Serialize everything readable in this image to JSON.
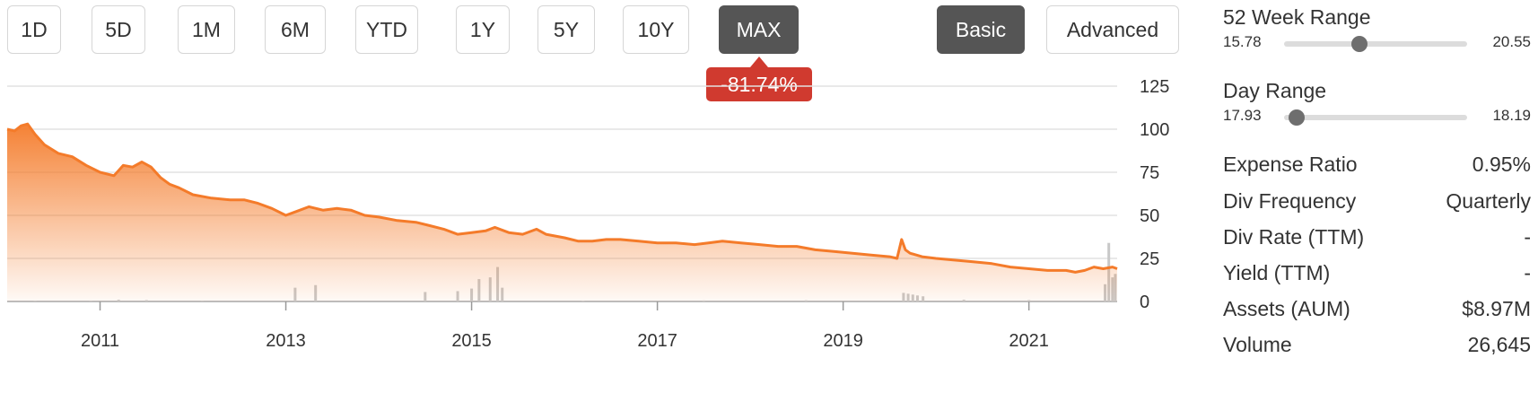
{
  "toolbar": {
    "periods": [
      "1D",
      "5D",
      "1M",
      "6M",
      "YTD",
      "1Y",
      "5Y",
      "10Y",
      "MAX"
    ],
    "active_period": "MAX",
    "modes": [
      "Basic",
      "Advanced"
    ],
    "active_mode": "Basic"
  },
  "change_badge": {
    "text": "-81.74%",
    "color": "#d03a2f"
  },
  "chart_data": {
    "type": "area",
    "y_ticks": [
      0,
      25,
      50,
      75,
      100,
      125
    ],
    "ylim": [
      0,
      125
    ],
    "x_ticks": [
      "2011",
      "2013",
      "2015",
      "2017",
      "2019",
      "2021"
    ],
    "xlim": [
      2010.0,
      2021.95
    ],
    "grid": true,
    "line_color": "#f47b2a",
    "volume_color": "#c8c8c8",
    "series": [
      {
        "values": [
          [
            2010.0,
            100
          ],
          [
            2010.08,
            99
          ],
          [
            2010.15,
            102
          ],
          [
            2010.22,
            103
          ],
          [
            2010.3,
            97
          ],
          [
            2010.4,
            91
          ],
          [
            2010.55,
            86
          ],
          [
            2010.7,
            84
          ],
          [
            2010.85,
            79
          ],
          [
            2011.0,
            75
          ],
          [
            2011.15,
            73
          ],
          [
            2011.25,
            79
          ],
          [
            2011.35,
            78
          ],
          [
            2011.45,
            81
          ],
          [
            2011.55,
            78
          ],
          [
            2011.65,
            72
          ],
          [
            2011.75,
            68
          ],
          [
            2011.85,
            66
          ],
          [
            2012.0,
            62
          ],
          [
            2012.2,
            60
          ],
          [
            2012.4,
            59
          ],
          [
            2012.55,
            59
          ],
          [
            2012.7,
            57
          ],
          [
            2012.85,
            54
          ],
          [
            2013.0,
            50
          ],
          [
            2013.1,
            52
          ],
          [
            2013.25,
            55
          ],
          [
            2013.4,
            53
          ],
          [
            2013.55,
            54
          ],
          [
            2013.7,
            53
          ],
          [
            2013.85,
            50
          ],
          [
            2014.0,
            49
          ],
          [
            2014.2,
            47
          ],
          [
            2014.4,
            46
          ],
          [
            2014.55,
            44
          ],
          [
            2014.7,
            42
          ],
          [
            2014.85,
            39
          ],
          [
            2015.0,
            40
          ],
          [
            2015.15,
            41
          ],
          [
            2015.25,
            43
          ],
          [
            2015.4,
            40
          ],
          [
            2015.55,
            39
          ],
          [
            2015.7,
            42
          ],
          [
            2015.8,
            39
          ],
          [
            2016.0,
            37
          ],
          [
            2016.15,
            35
          ],
          [
            2016.3,
            35
          ],
          [
            2016.45,
            36
          ],
          [
            2016.6,
            36
          ],
          [
            2016.8,
            35
          ],
          [
            2017.0,
            34
          ],
          [
            2017.2,
            34
          ],
          [
            2017.4,
            33
          ],
          [
            2017.55,
            34
          ],
          [
            2017.7,
            35
          ],
          [
            2017.9,
            34
          ],
          [
            2018.1,
            33
          ],
          [
            2018.3,
            32
          ],
          [
            2018.5,
            32
          ],
          [
            2018.7,
            30
          ],
          [
            2018.9,
            29
          ],
          [
            2019.1,
            28
          ],
          [
            2019.3,
            27
          ],
          [
            2019.5,
            26
          ],
          [
            2019.58,
            25
          ],
          [
            2019.63,
            36
          ],
          [
            2019.67,
            30
          ],
          [
            2019.72,
            28
          ],
          [
            2019.85,
            26
          ],
          [
            2020.0,
            25
          ],
          [
            2020.2,
            24
          ],
          [
            2020.4,
            23
          ],
          [
            2020.6,
            22
          ],
          [
            2020.8,
            20
          ],
          [
            2021.0,
            19
          ],
          [
            2021.2,
            18
          ],
          [
            2021.4,
            18
          ],
          [
            2021.5,
            17
          ],
          [
            2021.6,
            18
          ],
          [
            2021.7,
            20
          ],
          [
            2021.8,
            19
          ],
          [
            2021.9,
            20
          ],
          [
            2021.95,
            19
          ]
        ]
      }
    ],
    "volume": [
      [
        2010.3,
        0.4
      ],
      [
        2010.9,
        0.3
      ],
      [
        2011.2,
        1.0
      ],
      [
        2011.5,
        0.8
      ],
      [
        2012.1,
        0.3
      ],
      [
        2013.1,
        8.0
      ],
      [
        2013.32,
        9.5
      ],
      [
        2014.5,
        5.5
      ],
      [
        2014.85,
        6.0
      ],
      [
        2015.0,
        7.5
      ],
      [
        2015.08,
        13.0
      ],
      [
        2015.2,
        14.0
      ],
      [
        2015.28,
        20.0
      ],
      [
        2015.33,
        8.0
      ],
      [
        2016.2,
        0.5
      ],
      [
        2017.5,
        0.6
      ],
      [
        2018.6,
        0.7
      ],
      [
        2019.65,
        5.0
      ],
      [
        2019.7,
        4.5
      ],
      [
        2019.75,
        4.0
      ],
      [
        2019.8,
        3.5
      ],
      [
        2019.86,
        3.0
      ],
      [
        2020.3,
        1.0
      ],
      [
        2021.0,
        0.8
      ],
      [
        2021.82,
        10.0
      ],
      [
        2021.86,
        34.0
      ],
      [
        2021.9,
        14.0
      ],
      [
        2021.93,
        16.0
      ]
    ]
  },
  "stats": {
    "week52": {
      "label": "52 Week Range",
      "low": "15.78",
      "high": "20.55",
      "position": 0.41
    },
    "day": {
      "label": "Day Range",
      "low": "17.93",
      "high": "18.19",
      "position": 0.07
    },
    "rows": [
      {
        "key": "Expense Ratio",
        "value": "0.95%"
      },
      {
        "key": "Div Frequency",
        "value": "Quarterly"
      },
      {
        "key": "Div Rate (TTM)",
        "value": "-"
      },
      {
        "key": "Yield (TTM)",
        "value": "-"
      },
      {
        "key": "Assets (AUM)",
        "value": "$8.97M"
      },
      {
        "key": "Volume",
        "value": "26,645"
      }
    ]
  }
}
